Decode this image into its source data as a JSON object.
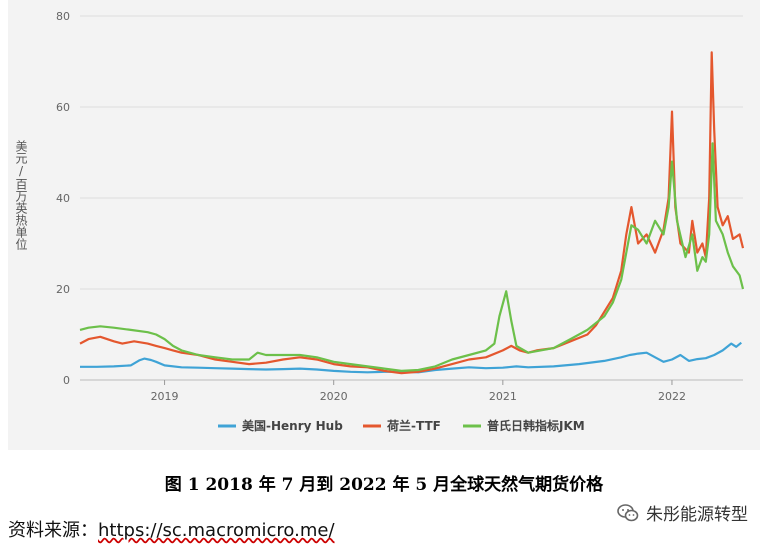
{
  "chart_data": {
    "type": "line",
    "ylabel": "美元/百万英热单位",
    "ylim": [
      0,
      80
    ],
    "yticks": [
      0,
      20,
      40,
      60,
      80
    ],
    "xlim": [
      2018.5,
      2022.42
    ],
    "xticks": [
      {
        "value": 2019,
        "label": "2019"
      },
      {
        "value": 2020,
        "label": "2020"
      },
      {
        "value": 2021,
        "label": "2021"
      },
      {
        "value": 2022,
        "label": "2022"
      }
    ],
    "grid": true,
    "legend_position": "bottom",
    "series": [
      {
        "name": "美国-Henry Hub",
        "color": "#3fa3d6",
        "points": [
          [
            2018.5,
            2.9
          ],
          [
            2018.6,
            2.9
          ],
          [
            2018.7,
            3.0
          ],
          [
            2018.8,
            3.2
          ],
          [
            2018.85,
            4.3
          ],
          [
            2018.88,
            4.7
          ],
          [
            2018.92,
            4.4
          ],
          [
            2018.95,
            4.0
          ],
          [
            2019.0,
            3.2
          ],
          [
            2019.1,
            2.8
          ],
          [
            2019.2,
            2.7
          ],
          [
            2019.3,
            2.6
          ],
          [
            2019.4,
            2.5
          ],
          [
            2019.5,
            2.4
          ],
          [
            2019.6,
            2.3
          ],
          [
            2019.7,
            2.4
          ],
          [
            2019.8,
            2.5
          ],
          [
            2019.9,
            2.3
          ],
          [
            2020.0,
            2.0
          ],
          [
            2020.1,
            1.8
          ],
          [
            2020.2,
            1.7
          ],
          [
            2020.3,
            1.8
          ],
          [
            2020.4,
            1.8
          ],
          [
            2020.5,
            1.7
          ],
          [
            2020.6,
            2.2
          ],
          [
            2020.7,
            2.5
          ],
          [
            2020.8,
            2.8
          ],
          [
            2020.9,
            2.6
          ],
          [
            2021.0,
            2.7
          ],
          [
            2021.08,
            3.0
          ],
          [
            2021.15,
            2.8
          ],
          [
            2021.3,
            3.0
          ],
          [
            2021.45,
            3.5
          ],
          [
            2021.6,
            4.2
          ],
          [
            2021.7,
            5.0
          ],
          [
            2021.75,
            5.5
          ],
          [
            2021.8,
            5.8
          ],
          [
            2021.85,
            6.0
          ],
          [
            2021.9,
            5.0
          ],
          [
            2021.95,
            4.0
          ],
          [
            2022.0,
            4.5
          ],
          [
            2022.05,
            5.5
          ],
          [
            2022.1,
            4.2
          ],
          [
            2022.15,
            4.6
          ],
          [
            2022.2,
            4.8
          ],
          [
            2022.25,
            5.5
          ],
          [
            2022.3,
            6.5
          ],
          [
            2022.35,
            8.0
          ],
          [
            2022.38,
            7.3
          ],
          [
            2022.41,
            8.2
          ]
        ]
      },
      {
        "name": "荷兰-TTF",
        "color": "#e4572e",
        "points": [
          [
            2018.5,
            8.0
          ],
          [
            2018.55,
            9.0
          ],
          [
            2018.62,
            9.5
          ],
          [
            2018.7,
            8.5
          ],
          [
            2018.75,
            8.0
          ],
          [
            2018.82,
            8.5
          ],
          [
            2018.9,
            8.0
          ],
          [
            2018.95,
            7.5
          ],
          [
            2019.0,
            7.0
          ],
          [
            2019.05,
            6.5
          ],
          [
            2019.1,
            6.0
          ],
          [
            2019.2,
            5.5
          ],
          [
            2019.3,
            4.5
          ],
          [
            2019.4,
            4.0
          ],
          [
            2019.5,
            3.5
          ],
          [
            2019.6,
            3.8
          ],
          [
            2019.7,
            4.5
          ],
          [
            2019.8,
            5.0
          ],
          [
            2019.9,
            4.5
          ],
          [
            2020.0,
            3.5
          ],
          [
            2020.1,
            3.0
          ],
          [
            2020.2,
            2.8
          ],
          [
            2020.3,
            2.0
          ],
          [
            2020.4,
            1.5
          ],
          [
            2020.5,
            1.8
          ],
          [
            2020.6,
            2.5
          ],
          [
            2020.7,
            3.5
          ],
          [
            2020.8,
            4.5
          ],
          [
            2020.9,
            5.0
          ],
          [
            2021.0,
            6.5
          ],
          [
            2021.05,
            7.5
          ],
          [
            2021.1,
            6.5
          ],
          [
            2021.15,
            6.0
          ],
          [
            2021.2,
            6.5
          ],
          [
            2021.3,
            7.0
          ],
          [
            2021.4,
            8.5
          ],
          [
            2021.5,
            10.0
          ],
          [
            2021.55,
            12.0
          ],
          [
            2021.6,
            15.0
          ],
          [
            2021.65,
            18.0
          ],
          [
            2021.7,
            24.0
          ],
          [
            2021.73,
            32.0
          ],
          [
            2021.76,
            38.0
          ],
          [
            2021.8,
            30.0
          ],
          [
            2021.85,
            32.0
          ],
          [
            2021.9,
            28.0
          ],
          [
            2021.95,
            33.0
          ],
          [
            2021.98,
            40.0
          ],
          [
            2022.0,
            59.0
          ],
          [
            2022.02,
            38.0
          ],
          [
            2022.05,
            30.0
          ],
          [
            2022.1,
            28.0
          ],
          [
            2022.12,
            35.0
          ],
          [
            2022.15,
            28.0
          ],
          [
            2022.18,
            30.0
          ],
          [
            2022.2,
            27.0
          ],
          [
            2022.22,
            40.0
          ],
          [
            2022.235,
            72.0
          ],
          [
            2022.25,
            55.0
          ],
          [
            2022.27,
            38.0
          ],
          [
            2022.3,
            34.0
          ],
          [
            2022.33,
            36.0
          ],
          [
            2022.36,
            31.0
          ],
          [
            2022.4,
            32.0
          ],
          [
            2022.42,
            29.0
          ]
        ]
      },
      {
        "name": "普氏日韩指标JKM",
        "color": "#6cc04a",
        "points": [
          [
            2018.5,
            11.0
          ],
          [
            2018.55,
            11.5
          ],
          [
            2018.62,
            11.8
          ],
          [
            2018.7,
            11.5
          ],
          [
            2018.8,
            11.0
          ],
          [
            2018.9,
            10.5
          ],
          [
            2018.95,
            10.0
          ],
          [
            2019.0,
            9.0
          ],
          [
            2019.05,
            7.5
          ],
          [
            2019.1,
            6.5
          ],
          [
            2019.2,
            5.5
          ],
          [
            2019.3,
            5.0
          ],
          [
            2019.4,
            4.5
          ],
          [
            2019.5,
            4.5
          ],
          [
            2019.55,
            6.0
          ],
          [
            2019.6,
            5.5
          ],
          [
            2019.7,
            5.5
          ],
          [
            2019.8,
            5.5
          ],
          [
            2019.9,
            5.0
          ],
          [
            2020.0,
            4.0
          ],
          [
            2020.1,
            3.5
          ],
          [
            2020.2,
            3.0
          ],
          [
            2020.3,
            2.5
          ],
          [
            2020.4,
            2.0
          ],
          [
            2020.5,
            2.2
          ],
          [
            2020.6,
            3.0
          ],
          [
            2020.7,
            4.5
          ],
          [
            2020.8,
            5.5
          ],
          [
            2020.9,
            6.5
          ],
          [
            2020.95,
            8.0
          ],
          [
            2020.98,
            14.0
          ],
          [
            2021.02,
            19.5
          ],
          [
            2021.05,
            13.0
          ],
          [
            2021.08,
            7.5
          ],
          [
            2021.15,
            6.0
          ],
          [
            2021.3,
            7.0
          ],
          [
            2021.4,
            9.0
          ],
          [
            2021.5,
            11.0
          ],
          [
            2021.6,
            14.0
          ],
          [
            2021.65,
            17.0
          ],
          [
            2021.7,
            22.0
          ],
          [
            2021.73,
            28.0
          ],
          [
            2021.76,
            34.0
          ],
          [
            2021.8,
            33.0
          ],
          [
            2021.85,
            30.0
          ],
          [
            2021.9,
            35.0
          ],
          [
            2021.95,
            32.0
          ],
          [
            2021.98,
            38.0
          ],
          [
            2022.0,
            48.0
          ],
          [
            2022.03,
            35.0
          ],
          [
            2022.08,
            27.0
          ],
          [
            2022.12,
            32.0
          ],
          [
            2022.15,
            24.0
          ],
          [
            2022.18,
            27.0
          ],
          [
            2022.2,
            26.0
          ],
          [
            2022.22,
            32.0
          ],
          [
            2022.24,
            52.0
          ],
          [
            2022.26,
            35.0
          ],
          [
            2022.3,
            32.0
          ],
          [
            2022.33,
            28.0
          ],
          [
            2022.36,
            25.0
          ],
          [
            2022.4,
            23.0
          ],
          [
            2022.42,
            20.0
          ]
        ]
      }
    ]
  },
  "caption": "图 1    2018 年 7 月到 2022 年 5 月全球天然气期货价格",
  "source": {
    "label": "资料来源：",
    "url": "https://sc.macromicro.me/"
  },
  "watermark": {
    "icon": "wechat-icon",
    "text": "朱彤能源转型"
  }
}
